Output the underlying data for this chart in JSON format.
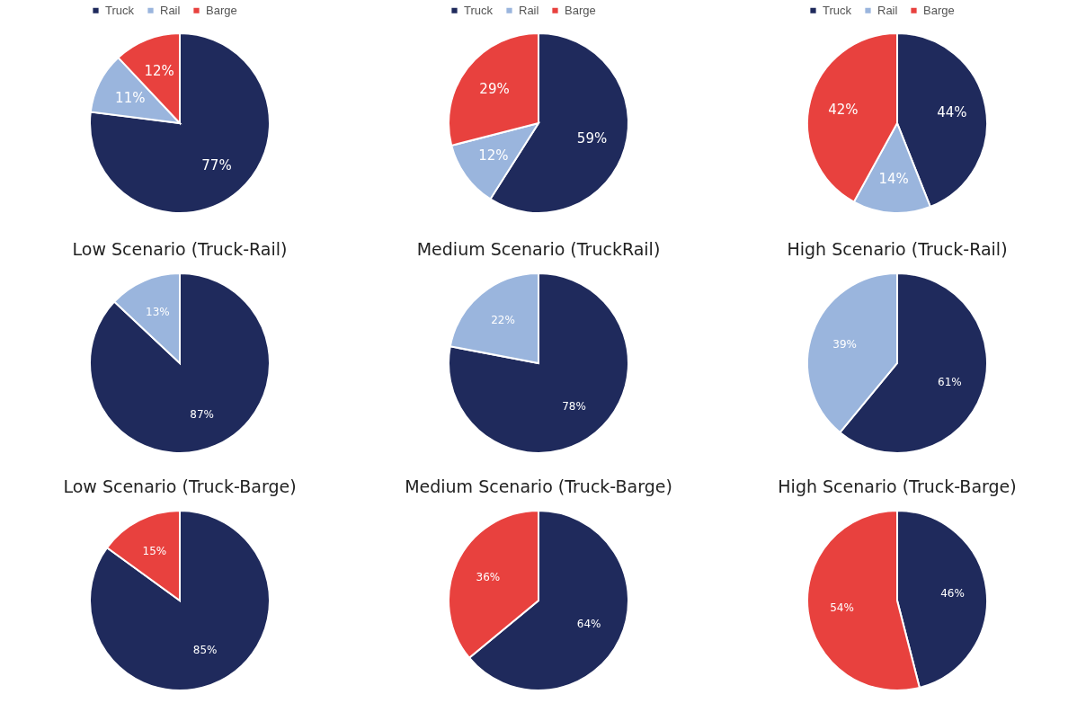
{
  "chart_data": [
    {
      "type": "pie",
      "categories": [
        "Truck",
        "Rail",
        "Barge"
      ],
      "values": [
        77,
        11,
        12
      ],
      "value_labels": [
        "77%",
        "11%",
        "12%"
      ],
      "colors": [
        "#1f2a5c",
        "#9ab5dd",
        "#e8413e"
      ],
      "legend": "top"
    },
    {
      "type": "pie",
      "categories": [
        "Truck",
        "Rail",
        "Barge"
      ],
      "values": [
        59,
        12,
        29
      ],
      "value_labels": [
        "59%",
        "12%",
        "29%"
      ],
      "colors": [
        "#1f2a5c",
        "#9ab5dd",
        "#e8413e"
      ],
      "legend": "top"
    },
    {
      "type": "pie",
      "categories": [
        "Truck",
        "Rail",
        "Barge"
      ],
      "values": [
        44,
        14,
        42
      ],
      "value_labels": [
        "44%",
        "14%",
        "42%"
      ],
      "colors": [
        "#1f2a5c",
        "#9ab5dd",
        "#e8413e"
      ],
      "legend": "top"
    },
    {
      "type": "pie",
      "title": "Low Scenario (Truck-Rail)",
      "categories": [
        null,
        null
      ],
      "values": [
        87,
        13
      ],
      "value_labels": [
        "87%",
        "13%"
      ],
      "colors": [
        "#1f2a5c",
        "#9ab5dd"
      ]
    },
    {
      "type": "pie",
      "title": "Medium Scenario (TruckRail)",
      "categories": [
        null,
        null
      ],
      "values": [
        78,
        22
      ],
      "value_labels": [
        "78%",
        "22%"
      ],
      "colors": [
        "#1f2a5c",
        "#9ab5dd"
      ]
    },
    {
      "type": "pie",
      "title": "High Scenario (Truck-Rail)",
      "categories": [
        null,
        null
      ],
      "values": [
        61,
        39
      ],
      "value_labels": [
        "61%",
        "39%"
      ],
      "colors": [
        "#1f2a5c",
        "#9ab5dd"
      ]
    },
    {
      "type": "pie",
      "title": "Low Scenario (Truck-Barge)",
      "categories": [
        null,
        null
      ],
      "values": [
        85,
        15
      ],
      "value_labels": [
        "85%",
        "15%"
      ],
      "colors": [
        "#1f2a5c",
        "#e8413e"
      ]
    },
    {
      "type": "pie",
      "title": "Medium Scenario (Truck-Barge)",
      "categories": [
        null,
        null
      ],
      "values": [
        64,
        36
      ],
      "value_labels": [
        "64%",
        "36%"
      ],
      "colors": [
        "#1f2a5c",
        "#e8413e"
      ]
    },
    {
      "type": "pie",
      "title": "High Scenario (Truck-Barge)",
      "categories": [
        null,
        null
      ],
      "values": [
        46,
        54
      ],
      "value_labels": [
        "46%",
        "54%"
      ],
      "colors": [
        "#1f2a5c",
        "#e8413e"
      ]
    }
  ]
}
